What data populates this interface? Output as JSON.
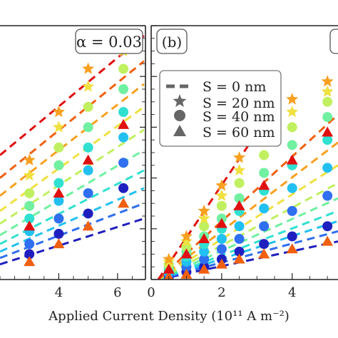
{
  "chart_data": [
    {
      "type": "scatter",
      "panel": "left (clipped)",
      "annotation": "α = 0.03",
      "xlabel": "Applied Current Density (10¹¹ A m⁻²)",
      "xlim": [
        2.0,
        6.95
      ],
      "ylim": [
        0,
        1
      ],
      "xticks": [
        4,
        6
      ],
      "xtick_labels": [
        "4",
        "6"
      ],
      "colormap": [
        "#1f1fbf",
        "#2f6ff0",
        "#22c0f0",
        "#30e0d0",
        "#70f0a0",
        "#c0f060",
        "#f0e040",
        "#f8a020",
        "#f06010",
        "#e01010"
      ],
      "series": [
        {
          "marker": "dashed-line",
          "x": [
            2.0,
            6.9
          ],
          "y": [
            0.06,
            0.24
          ]
        },
        {
          "marker": "dashed-line",
          "x": [
            2.0,
            6.9
          ],
          "y": [
            0.085,
            0.3
          ]
        },
        {
          "marker": "dashed-line",
          "x": [
            2.0,
            6.9
          ],
          "y": [
            0.11,
            0.36
          ]
        },
        {
          "marker": "dashed-line",
          "x": [
            2.0,
            6.9
          ],
          "y": [
            0.14,
            0.43
          ]
        },
        {
          "marker": "dashed-line",
          "x": [
            2.0,
            6.9
          ],
          "y": [
            0.175,
            0.51
          ]
        },
        {
          "marker": "dashed-line",
          "x": [
            2.0,
            6.9
          ],
          "y": [
            0.22,
            0.59
          ]
        },
        {
          "marker": "dashed-line",
          "x": [
            2.0,
            6.9
          ],
          "y": [
            0.27,
            0.68
          ]
        },
        {
          "marker": "dashed-line",
          "x": [
            2.0,
            6.9
          ],
          "y": [
            0.33,
            0.77
          ]
        },
        {
          "marker": "dashed-line",
          "x": [
            2.0,
            6.9
          ],
          "y": [
            0.4,
            0.86
          ]
        },
        {
          "marker": "dashed-line",
          "x": [
            2.0,
            6.9
          ],
          "y": [
            0.49,
            0.96
          ]
        },
        {
          "marker": "circle",
          "x": [
            3.0,
            4.0,
            5.0,
            6.2
          ],
          "y": [
            0.1,
            0.18,
            0.26,
            0.36
          ]
        },
        {
          "marker": "circle",
          "x": [
            3.0,
            4.0,
            5.0,
            6.2
          ],
          "y": [
            0.14,
            0.24,
            0.34,
            0.46
          ]
        },
        {
          "marker": "circle",
          "x": [
            3.0,
            4.0,
            5.0,
            6.2
          ],
          "y": [
            0.19,
            0.31,
            0.43,
            0.56
          ]
        },
        {
          "marker": "circle",
          "x": [
            3.0,
            4.0,
            5.0,
            6.2
          ],
          "y": [
            0.24,
            0.38,
            0.52,
            0.66
          ]
        },
        {
          "marker": "circle",
          "x": [
            3.0,
            4.0,
            5.0,
            6.2
          ],
          "y": [
            0.29,
            0.45,
            0.6,
            0.75
          ]
        },
        {
          "marker": "circle",
          "x": [
            3.0,
            4.0,
            5.0,
            6.2
          ],
          "y": [
            0.34,
            0.52,
            0.68,
            0.83
          ]
        },
        {
          "marker": "star",
          "x": [
            3.0,
            4.0,
            5.0,
            6.2
          ],
          "y": [
            0.41,
            0.6,
            0.76,
            0.9
          ]
        },
        {
          "marker": "star",
          "x": [
            3.0,
            4.0,
            5.0,
            6.2
          ],
          "y": [
            0.47,
            0.66,
            0.83,
            0.95
          ]
        },
        {
          "marker": "triangle",
          "x": [
            3.0,
            4.0,
            5.0,
            6.2
          ],
          "y": [
            0.07,
            0.14,
            0.21,
            0.3
          ]
        },
        {
          "marker": "triangle",
          "x": [
            3.0,
            4.0,
            5.0,
            6.2
          ],
          "y": [
            0.21,
            0.34,
            0.47,
            0.61
          ]
        }
      ]
    },
    {
      "type": "scatter",
      "panel": "(b)",
      "panel_label": "(b)",
      "xlabel": "Applied Current Density (10¹¹ A m⁻²)",
      "xlim": [
        0,
        5.3
      ],
      "ylim": [
        0,
        1
      ],
      "xticks": [
        0,
        2,
        4
      ],
      "xtick_labels": [
        "0",
        "2",
        "4"
      ],
      "legend": {
        "placement": "top-left inside panel (b)",
        "entries": [
          {
            "marker": "dashed-line",
            "label": "S = 0 nm"
          },
          {
            "marker": "star",
            "label": "S = 20 nm"
          },
          {
            "marker": "circle",
            "label": "S = 40 nm"
          },
          {
            "marker": "triangle",
            "label": "S = 60 nm"
          }
        ]
      },
      "series": [
        {
          "marker": "dashed-line",
          "x": [
            0.2,
            5.3
          ],
          "y": [
            0.0,
            0.15
          ]
        },
        {
          "marker": "dashed-line",
          "x": [
            0.2,
            5.3
          ],
          "y": [
            0.0,
            0.19
          ]
        },
        {
          "marker": "dashed-line",
          "x": [
            0.2,
            5.3
          ],
          "y": [
            0.0,
            0.23
          ]
        },
        {
          "marker": "dashed-line",
          "x": [
            0.2,
            5.3
          ],
          "y": [
            0.0,
            0.27
          ]
        },
        {
          "marker": "dashed-line",
          "x": [
            0.2,
            5.3
          ],
          "y": [
            0.0,
            0.32
          ]
        },
        {
          "marker": "dashed-line",
          "x": [
            0.2,
            5.3
          ],
          "y": [
            0.0,
            0.38
          ]
        },
        {
          "marker": "dashed-line",
          "x": [
            0.2,
            5.3
          ],
          "y": [
            0.0,
            0.45
          ]
        },
        {
          "marker": "dashed-line",
          "x": [
            0.2,
            5.3
          ],
          "y": [
            0.0,
            0.54
          ]
        },
        {
          "marker": "dashed-line",
          "x": [
            0.2,
            5.3
          ],
          "y": [
            0.0,
            0.65
          ]
        },
        {
          "marker": "dashed-line",
          "x": [
            0.2,
            3.2
          ],
          "y": [
            0.0,
            0.62
          ]
        },
        {
          "marker": "circle",
          "x": [
            0.5,
            1.0,
            1.5,
            2.0,
            2.5,
            3.2,
            4.0,
            5.0
          ],
          "y": [
            0.01,
            0.03,
            0.05,
            0.08,
            0.11,
            0.14,
            0.17,
            0.21
          ]
        },
        {
          "marker": "circle",
          "x": [
            0.5,
            1.0,
            1.5,
            2.0,
            2.5,
            3.2,
            4.0,
            5.0
          ],
          "y": [
            0.02,
            0.05,
            0.08,
            0.12,
            0.16,
            0.21,
            0.27,
            0.33
          ]
        },
        {
          "marker": "circle",
          "x": [
            0.5,
            1.0,
            1.5,
            2.0,
            2.5,
            3.2,
            4.0,
            5.0
          ],
          "y": [
            0.03,
            0.07,
            0.11,
            0.16,
            0.21,
            0.28,
            0.36,
            0.44
          ]
        },
        {
          "marker": "circle",
          "x": [
            0.5,
            1.0,
            1.5,
            2.0,
            2.5,
            3.2,
            4.0,
            5.0
          ],
          "y": [
            0.04,
            0.09,
            0.14,
            0.2,
            0.27,
            0.35,
            0.45,
            0.55
          ]
        },
        {
          "marker": "circle",
          "x": [
            0.5,
            1.0,
            1.5,
            2.0,
            2.5,
            3.2,
            4.0,
            5.0
          ],
          "y": [
            0.05,
            0.11,
            0.17,
            0.24,
            0.32,
            0.42,
            0.53,
            0.64
          ]
        },
        {
          "marker": "circle",
          "x": [
            0.5,
            1.0,
            1.5,
            2.0,
            2.5,
            3.2,
            4.0,
            5.0
          ],
          "y": [
            0.06,
            0.13,
            0.21,
            0.29,
            0.38,
            0.49,
            0.6,
            0.7
          ]
        },
        {
          "marker": "star",
          "x": [
            0.5,
            1.0,
            1.5,
            2.0,
            2.5,
            3.2,
            4.0,
            5.0
          ],
          "y": [
            0.07,
            0.15,
            0.24,
            0.33,
            0.43,
            0.55,
            0.66,
            0.74
          ]
        },
        {
          "marker": "star",
          "x": [
            0.5,
            1.0,
            1.5,
            2.0,
            2.5,
            3.2,
            4.0,
            5.0
          ],
          "y": [
            0.08,
            0.17,
            0.27,
            0.37,
            0.48,
            0.6,
            0.71,
            0.78
          ]
        },
        {
          "marker": "triangle",
          "x": [
            0.5,
            1.0,
            1.5,
            2.0,
            2.5,
            3.2,
            4.0,
            5.0
          ],
          "y": [
            0.01,
            0.02,
            0.04,
            0.06,
            0.08,
            0.1,
            0.12,
            0.15
          ]
        },
        {
          "marker": "triangle",
          "x": [
            0.5,
            1.0,
            1.5,
            2.0,
            2.5,
            3.2,
            4.0,
            5.0
          ],
          "y": [
            0.04,
            0.1,
            0.16,
            0.22,
            0.29,
            0.37,
            0.47,
            0.58
          ]
        }
      ]
    }
  ]
}
